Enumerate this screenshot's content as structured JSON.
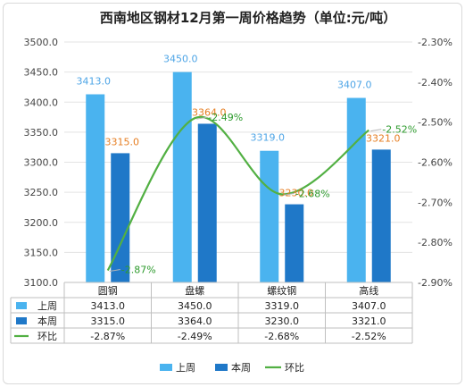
{
  "chart_data": {
    "type": "bar",
    "title": "西南地区钢材12月第一周价格趋势（单位:元/吨）",
    "categories": [
      "圆钢",
      "盘螺",
      "螺纹钢",
      "高线"
    ],
    "series": [
      {
        "name": "上周",
        "type": "bar",
        "axis": "left",
        "color": "#4ab3ef",
        "values": [
          3413.0,
          3450.0,
          3319.0,
          3407.0
        ],
        "labels": [
          "3413.0",
          "3450.0",
          "3319.0",
          "3407.0"
        ]
      },
      {
        "name": "本周",
        "type": "bar",
        "axis": "left",
        "color": "#1f78c8",
        "values": [
          3315.0,
          3364.0,
          3230.0,
          3321.0
        ],
        "labels": [
          "3315.0",
          "3364.0",
          "3230.0",
          "3321.0"
        ]
      },
      {
        "name": "环比",
        "type": "line",
        "axis": "right",
        "color": "#52b043",
        "values": [
          -2.87,
          -2.49,
          -2.68,
          -2.52
        ],
        "labels": [
          "-2.87%",
          "-2.49%",
          "-2.68%",
          "-2.52%"
        ]
      }
    ],
    "y_left": {
      "min": 3100,
      "max": 3500,
      "step": 50,
      "ticks": [
        "3100.0",
        "3150.0",
        "3200.0",
        "3250.0",
        "3300.0",
        "3350.0",
        "3400.0",
        "3450.0",
        "3500.0"
      ]
    },
    "y_right": {
      "min": -2.9,
      "max": -2.3,
      "step": 0.1,
      "ticks": [
        "-2.90%",
        "-2.80%",
        "-2.70%",
        "-2.60%",
        "-2.50%",
        "-2.40%",
        "-2.30%"
      ]
    },
    "data_table": true,
    "grid": true,
    "legend_position": "bottom"
  },
  "colors": {
    "label_prev": "#4ea5e6",
    "label_cur": "#e67e22",
    "label_ratio": "#2e9b2e"
  }
}
